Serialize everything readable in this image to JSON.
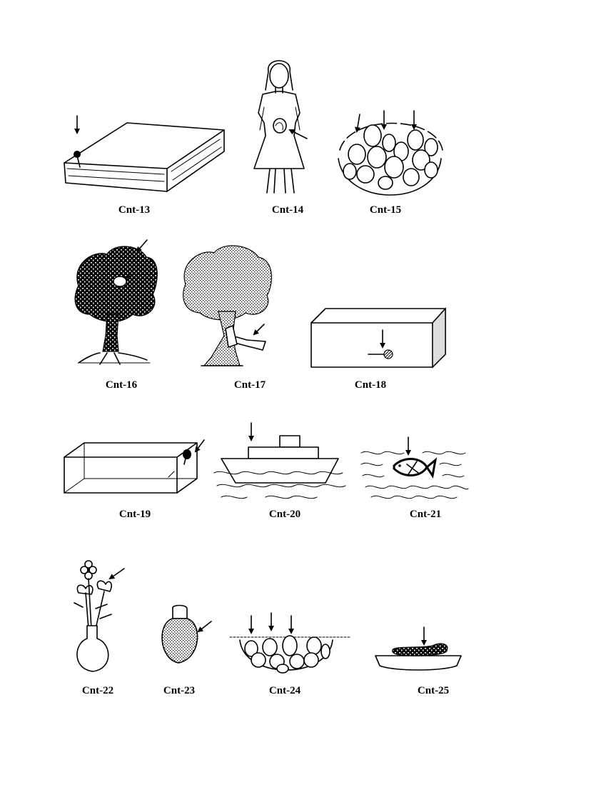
{
  "figures": [
    {
      "id": "cnt-13",
      "label": "Cnt-13",
      "depicts": "book-with-pin"
    },
    {
      "id": "cnt-14",
      "label": "Cnt-14",
      "depicts": "pregnant-woman"
    },
    {
      "id": "cnt-15",
      "label": "Cnt-15",
      "depicts": "basket-of-eggs"
    },
    {
      "id": "cnt-16",
      "label": "Cnt-16",
      "depicts": "tree-with-bird"
    },
    {
      "id": "cnt-17",
      "label": "Cnt-17",
      "depicts": "tree-with-axe"
    },
    {
      "id": "cnt-18",
      "label": "Cnt-18",
      "depicts": "box-with-pin"
    },
    {
      "id": "cnt-19",
      "label": "Cnt-19",
      "depicts": "glass-box-with-balloon"
    },
    {
      "id": "cnt-20",
      "label": "Cnt-20",
      "depicts": "boat-on-water"
    },
    {
      "id": "cnt-21",
      "label": "Cnt-21",
      "depicts": "fish-in-water"
    },
    {
      "id": "cnt-22",
      "label": "Cnt-22",
      "depicts": "flowers-in-vase"
    },
    {
      "id": "cnt-23",
      "label": "Cnt-23",
      "depicts": "filled-jar"
    },
    {
      "id": "cnt-24",
      "label": "Cnt-24",
      "depicts": "bowl-of-eggs"
    },
    {
      "id": "cnt-25",
      "label": "Cnt-25",
      "depicts": "tray-with-object"
    }
  ]
}
